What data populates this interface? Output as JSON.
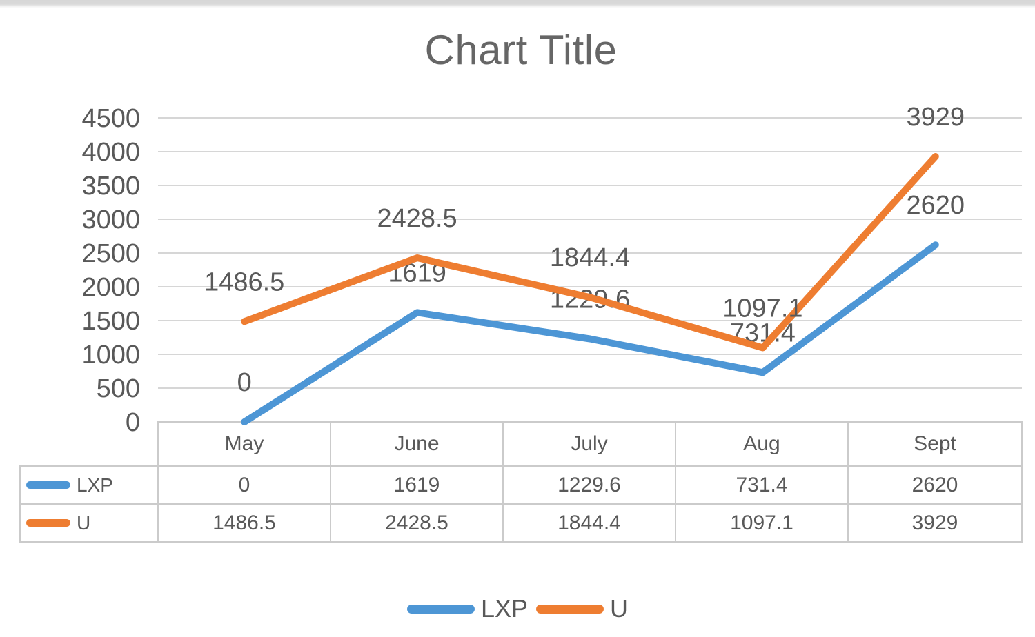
{
  "page": {
    "top_strip_color": "#d9d9d9",
    "background_color": "#ffffff"
  },
  "chart_data": {
    "type": "line",
    "title": "Chart Title",
    "categories": [
      "May",
      "June",
      "July",
      "Aug",
      "Sept"
    ],
    "series": [
      {
        "name": "LXP",
        "color": "#4d96d5",
        "values": [
          0,
          1619,
          1229.6,
          731.4,
          2620
        ]
      },
      {
        "name": "U",
        "color": "#ee7d31",
        "values": [
          1486.5,
          2428.5,
          1844.4,
          1097.1,
          3929
        ]
      }
    ],
    "ylabel": "",
    "xlabel": "",
    "ylim": [
      0,
      4500
    ],
    "ytick_step": 500,
    "yticks": [
      0,
      500,
      1000,
      1500,
      2000,
      2500,
      3000,
      3500,
      4000,
      4500
    ],
    "grid": true,
    "gridline_color": "#d6d6d6",
    "data_labels": true,
    "text_color": "#595959",
    "title_color": "#666666",
    "legend_position": "bottom",
    "legend": [
      "LXP",
      "U"
    ],
    "data_table_shown": true
  }
}
